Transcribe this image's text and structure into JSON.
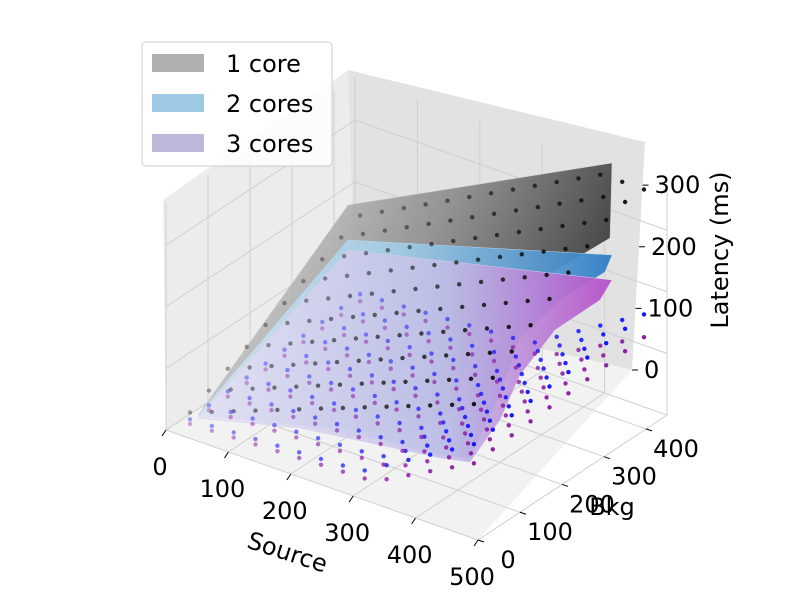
{
  "chart_data": {
    "type": "surface3d",
    "title": "",
    "xlabel": "Source",
    "ylabel": "Bkg",
    "zlabel": "Latency (ms)",
    "xlim": [
      0,
      500
    ],
    "ylim": [
      0,
      450
    ],
    "zlim": [
      0,
      370
    ],
    "x_ticks": [
      0,
      100,
      200,
      300,
      400,
      500
    ],
    "y_ticks": [
      0,
      100,
      200,
      300,
      400
    ],
    "z_ticks": [
      0,
      100,
      200,
      300
    ],
    "x_tick_labels": [
      "0",
      "100",
      "200",
      "300",
      "400",
      "500"
    ],
    "y_tick_labels": [
      "0",
      "100",
      "200",
      "300",
      "400"
    ],
    "z_tick_labels": [
      "0",
      "100",
      "200",
      "300"
    ],
    "grid": true,
    "legend_position": "top-left",
    "series": [
      {
        "name": "1 core",
        "color": "#a6a6a6",
        "marker_color": "#1a1a1a",
        "description": "latency grows roughly linearly with Source and Bkg, peaking near 350 ms"
      },
      {
        "name": "2 cores",
        "color": "#86bfe6",
        "marker_color": "#0a0aff",
        "description": "flat near 20-30 ms for Source < 300, step rise to ~200 ms at high Source"
      },
      {
        "name": "3 cores",
        "color": "#b9b3e0",
        "marker_color": "#8a1aa3",
        "description": "slightly below 2 cores, rising to ~170 ms at high Source"
      }
    ]
  },
  "legend": {
    "items": [
      {
        "label": "1 core",
        "color": "#b0b0b0"
      },
      {
        "label": "2 cores",
        "color": "#9ecae5"
      },
      {
        "label": "3 cores",
        "color": "#bcb8dc"
      }
    ]
  }
}
